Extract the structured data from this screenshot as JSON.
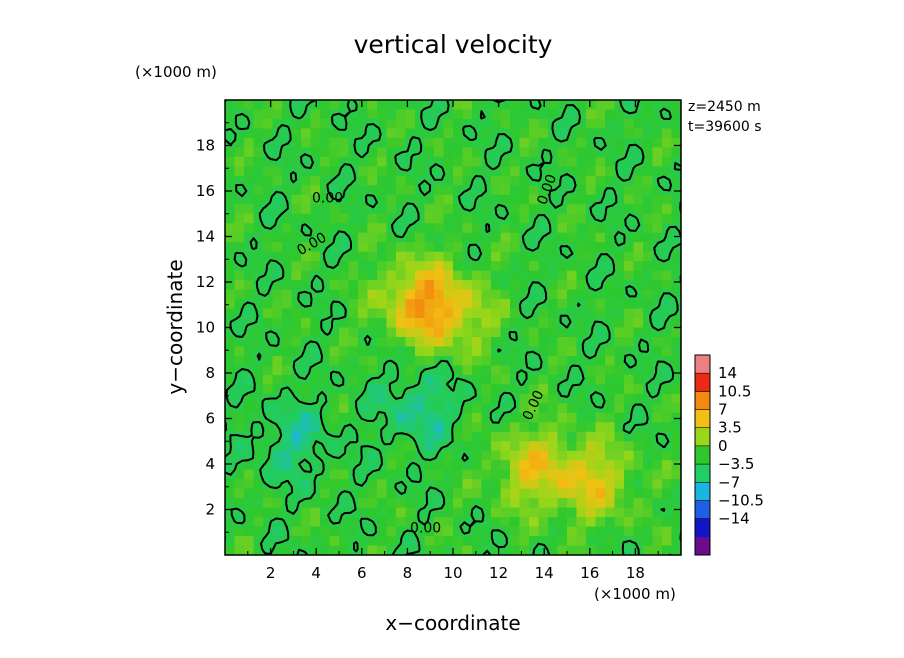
{
  "chart_data": {
    "type": "heatmap",
    "title": "vertical velocity",
    "xlabel": "x−coordinate",
    "ylabel": "y−coordinate",
    "x_unit": "(×1000 m)",
    "y_unit": "(×1000 m)",
    "xlim": [
      0,
      20
    ],
    "ylim": [
      0,
      20
    ],
    "x_ticks": [
      "2",
      "4",
      "6",
      "8",
      "10",
      "12",
      "14",
      "16",
      "18"
    ],
    "y_ticks": [
      "2",
      "4",
      "6",
      "8",
      "10",
      "12",
      "14",
      "16",
      "18"
    ],
    "annotations": [
      "z=2450  m",
      "t=39600  s"
    ],
    "contour_labels": [
      "0.00",
      "0.00",
      "0.00",
      "0.00",
      "0.00"
    ],
    "colorbar": {
      "ticks": [
        "14",
        "10.5",
        "7",
        "3.5",
        "0",
        "−3.5",
        "−7",
        "−10.5",
        "−14"
      ],
      "levels": [
        -14,
        -10.5,
        -7,
        -3.5,
        0,
        3.5,
        7,
        10.5,
        14
      ],
      "colors": [
        "#6a0d8c",
        "#1515c8",
        "#1f5fe6",
        "#19b6e0",
        "#22cc66",
        "#2ec82e",
        "#9ad61a",
        "#f2c013",
        "#f28a10",
        "#ea2a14",
        "#ec8080"
      ]
    },
    "features": [
      {
        "kind": "updraft",
        "center": [
          8.5,
          11.2
        ],
        "peak": 7.5
      },
      {
        "kind": "updraft",
        "center": [
          13.5,
          3.8
        ],
        "peak": 6
      },
      {
        "kind": "updraft",
        "center": [
          16.2,
          3.2
        ],
        "peak": 6
      },
      {
        "kind": "updraft",
        "center": [
          10,
          10.5
        ],
        "peak": 5
      },
      {
        "kind": "downdraft",
        "center": [
          8.5,
          6.5
        ],
        "peak": -4
      },
      {
        "kind": "downdraft",
        "center": [
          3,
          5
        ],
        "peak": -3.5
      }
    ]
  }
}
